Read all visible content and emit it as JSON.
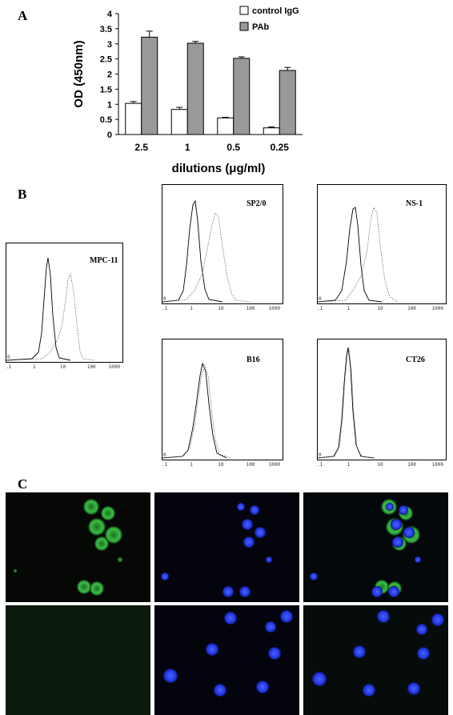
{
  "panels": {
    "a": "A",
    "b": "B",
    "c": "C"
  },
  "chart_data": {
    "type": "bar",
    "categories": [
      "2.5",
      "1",
      "0.5",
      "0.25"
    ],
    "series": [
      {
        "name": "control IgG",
        "values": [
          1.03,
          0.83,
          0.55,
          0.22
        ],
        "errors": [
          0.06,
          0.07,
          0.02,
          0.03
        ],
        "color": "#ffffff"
      },
      {
        "name": "PAb",
        "values": [
          3.22,
          3.02,
          2.52,
          2.12
        ],
        "errors": [
          0.2,
          0.06,
          0.05,
          0.1
        ],
        "color": "#999999"
      }
    ],
    "xlabel": "dilutions (μg/ml)",
    "ylabel": "OD (450nm)",
    "ylim": [
      0,
      4
    ],
    "yticks": [
      "0",
      "0.5",
      "1",
      "1.5",
      "2",
      "2.5",
      "3",
      "3.5",
      "4"
    ],
    "legend_position": "top-right",
    "grid": false
  },
  "histograms": [
    {
      "label": "MPC-11",
      "xticks": [
        "1",
        "1",
        "10",
        "100",
        "1000"
      ]
    },
    {
      "label": "SP2/0",
      "xticks": [
        "1",
        "1",
        "10",
        "100",
        "1000"
      ]
    },
    {
      "label": "NS-1",
      "xticks": [
        "1",
        "1",
        "10",
        "100",
        "1000"
      ]
    },
    {
      "label": "B16",
      "xticks": [
        "1",
        "1",
        "10",
        "100",
        "1000"
      ]
    },
    {
      "label": "CT26",
      "xticks": [
        "1",
        "1",
        "10",
        "100",
        "1000"
      ]
    }
  ]
}
